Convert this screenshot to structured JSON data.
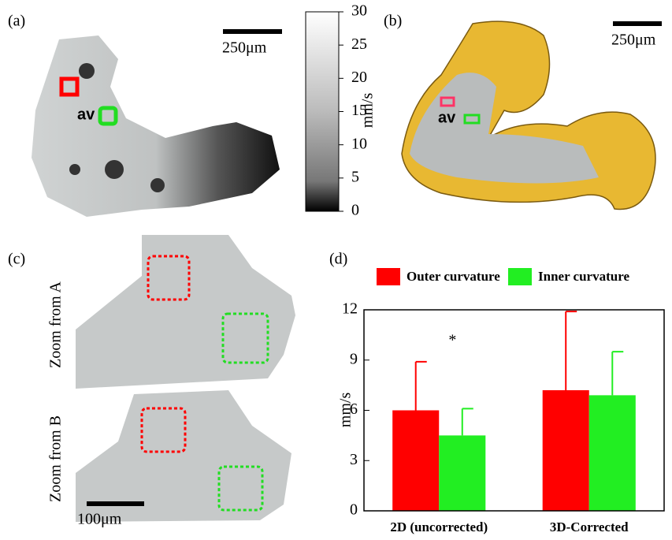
{
  "panels": {
    "a": {
      "label": "(a)",
      "scale_bar": "250μm",
      "annotation": "av",
      "colorbar": {
        "label": "mm/s",
        "lim": [
          0,
          30
        ],
        "ticks": [
          0,
          5,
          10,
          15,
          20,
          25,
          30
        ]
      }
    },
    "b": {
      "label": "(b)",
      "scale_bar": "250μm",
      "annotation": "av"
    },
    "c": {
      "label": "(c)",
      "zoom_a": "Zoom from A",
      "zoom_b": "Zoom from B",
      "scale_bar": "100μm"
    }
  },
  "chart_data": {
    "type": "bar",
    "panel_label": "(d)",
    "ylabel": "mm/s",
    "annotation": "*",
    "categories": [
      "2D (uncorrected)",
      "3D-Corrected"
    ],
    "series": [
      {
        "name": "Outer curvature",
        "color": "#ff0000",
        "values": [
          6.0,
          7.2
        ],
        "errors": [
          2.9,
          4.7
        ]
      },
      {
        "name": "Inner curvature",
        "color": "#22ee22",
        "values": [
          4.5,
          6.9
        ],
        "errors": [
          1.6,
          2.6
        ]
      }
    ],
    "ylim": [
      0,
      12
    ],
    "yticks": [
      0,
      3,
      6,
      9,
      12
    ]
  }
}
